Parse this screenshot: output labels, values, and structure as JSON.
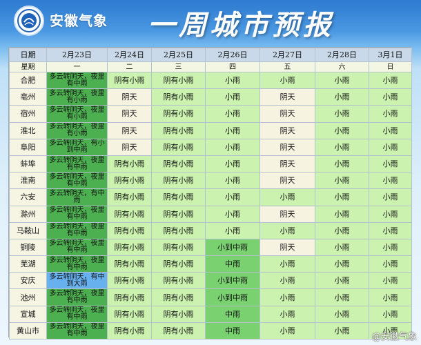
{
  "header": {
    "brand": "安徽气象",
    "title": "一周城市预报"
  },
  "table": {
    "date_label": "日期",
    "week_label": "星期",
    "dates": [
      "2月23日",
      "2月24日",
      "2月25日",
      "2月26日",
      "2月27日",
      "2月28日",
      "3月1日"
    ],
    "weekdays": [
      "一",
      "二",
      "三",
      "四",
      "五",
      "六",
      "日"
    ],
    "rows": [
      {
        "city": "合肥",
        "cells": [
          "多云转阴天，夜里有中雨",
          "阴有小雨",
          "阴有小雨",
          "小雨",
          "小雨",
          "小雨",
          "小雨"
        ],
        "styles": [
          "dark",
          "lg",
          "lg",
          "lg",
          "lg",
          "lg",
          "lg"
        ]
      },
      {
        "city": "亳州",
        "cells": [
          "多云转阴天，夜里有小雨",
          "阴天",
          "阴有小雨",
          "小雨",
          "阴天",
          "小雨",
          "小雨"
        ],
        "styles": [
          "dark",
          "beige",
          "lg",
          "lg",
          "beige",
          "lg",
          "lg"
        ]
      },
      {
        "city": "宿州",
        "cells": [
          "多云转阴天，夜里有小雨",
          "阴天",
          "阴有小雨",
          "小雨",
          "阴天",
          "小雨",
          "小雨"
        ],
        "styles": [
          "dark",
          "beige",
          "lg",
          "lg",
          "beige",
          "lg",
          "lg"
        ]
      },
      {
        "city": "淮北",
        "cells": [
          "多云转阴天，夜里有小雨",
          "阴天",
          "阴有小雨",
          "小雨",
          "阴天",
          "小雨",
          "小雨"
        ],
        "styles": [
          "dark",
          "beige",
          "lg",
          "lg",
          "beige",
          "lg",
          "lg"
        ]
      },
      {
        "city": "阜阳",
        "cells": [
          "多云转阴天，有小到中雨",
          "阴天",
          "阴有小雨",
          "小雨",
          "阴天",
          "小雨",
          "小雨"
        ],
        "styles": [
          "dark",
          "beige",
          "lg",
          "lg",
          "beige",
          "lg",
          "lg"
        ]
      },
      {
        "city": "蚌埠",
        "cells": [
          "多云转阴天，夜里有中雨",
          "阴有小雨",
          "阴有小雨",
          "小雨",
          "阴天",
          "小雨",
          "小雨"
        ],
        "styles": [
          "dark",
          "lg",
          "lg",
          "lg",
          "beige",
          "lg",
          "lg"
        ]
      },
      {
        "city": "淮南",
        "cells": [
          "多云转阴天，夜里有中雨",
          "阴有小雨",
          "阴有小雨",
          "小雨",
          "阴天",
          "小雨",
          "小雨"
        ],
        "styles": [
          "dark",
          "lg",
          "lg",
          "lg",
          "beige",
          "lg",
          "lg"
        ]
      },
      {
        "city": "六安",
        "cells": [
          "多云转阴天，有中雨",
          "阴有小雨",
          "阴有小雨",
          "小雨",
          "小雨",
          "小雨",
          "小雨"
        ],
        "styles": [
          "dark",
          "lg",
          "lg",
          "lg",
          "lg",
          "lg",
          "lg"
        ]
      },
      {
        "city": "滁州",
        "cells": [
          "多云转阴天，夜里有中雨",
          "阴有小雨",
          "阴有小雨",
          "小雨",
          "阴天",
          "小雨",
          "小雨"
        ],
        "styles": [
          "dark",
          "lg",
          "lg",
          "lg",
          "beige",
          "lg",
          "lg"
        ]
      },
      {
        "city": "马鞍山",
        "cells": [
          "多云转阴天，夜里有中雨",
          "阴有小雨",
          "阴有小雨",
          "小雨",
          "小雨",
          "小雨",
          "小雨"
        ],
        "styles": [
          "dark",
          "lg",
          "lg",
          "lg",
          "lg",
          "lg",
          "lg"
        ]
      },
      {
        "city": "铜陵",
        "cells": [
          "多云转阴天，夜里有中雨",
          "阴有小雨",
          "阴有小雨",
          "小到中雨",
          "阴天",
          "小雨",
          "小雨"
        ],
        "styles": [
          "dark",
          "lg",
          "lg",
          "mid",
          "beige",
          "lg",
          "lg"
        ]
      },
      {
        "city": "芜湖",
        "cells": [
          "多云转阴天，夜里有中雨",
          "阴有小雨",
          "阴有小雨",
          "中雨",
          "小雨",
          "小雨",
          "小雨"
        ],
        "styles": [
          "dark",
          "lg",
          "lg",
          "mid",
          "lg",
          "lg",
          "lg"
        ]
      },
      {
        "city": "安庆",
        "cells": [
          "多云转阴天，有中到大雨",
          "阴有小雨",
          "阴有小雨",
          "小到中雨",
          "小雨",
          "小雨",
          "小雨"
        ],
        "styles": [
          "blue",
          "lg",
          "lg",
          "mid",
          "lg",
          "lg",
          "lg"
        ]
      },
      {
        "city": "池州",
        "cells": [
          "多云转阴天，夜里有中雨",
          "阴有小雨",
          "阴有小雨",
          "小到中雨",
          "小雨",
          "小雨",
          "小雨"
        ],
        "styles": [
          "dark",
          "lg",
          "lg",
          "mid",
          "lg",
          "lg",
          "lg"
        ]
      },
      {
        "city": "宣城",
        "cells": [
          "多云转阴天，夜里有中雨",
          "阴有小雨",
          "阴有小雨",
          "中雨",
          "小雨",
          "小雨",
          "小雨"
        ],
        "styles": [
          "dark",
          "lg",
          "lg",
          "mid",
          "lg",
          "lg",
          "lg"
        ]
      },
      {
        "city": "黄山市",
        "cells": [
          "多云转阴天，夜里有中雨",
          "阴有小雨",
          "阴有小雨",
          "中雨",
          "小雨",
          "小雨",
          "小雨"
        ],
        "styles": [
          "dark",
          "lg",
          "lg",
          "mid",
          "lg",
          "lg",
          "lg"
        ]
      }
    ]
  },
  "watermark": "@安徽气象",
  "colors": {
    "header_row": "#c9d9ea",
    "light_green": "#ccf2b0",
    "beige": "#f7f3e1",
    "mid_green": "#79d26f",
    "dark_green": "#4caf50",
    "blue": "#66b1ee"
  }
}
